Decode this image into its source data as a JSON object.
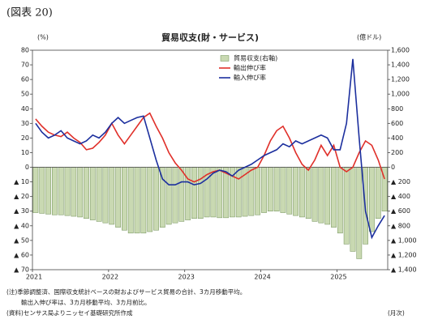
{
  "figure_label": "(図表 20)",
  "chart_data": {
    "type": "bar_line",
    "title": "貿易収支(財・サービス)",
    "y_label": "(%)",
    "y2_label": "(億ドル)",
    "x_unit": "(月次)",
    "notes": [
      "(注)季節調整済、国際収支統計ベースの財およびサービス貿易の合計、3カ月移動平均。",
      "輸出入伸び率は、3カ月移動平均、3カ月前比。",
      "(資料)センサス局よりニッセイ基礎研究所作成"
    ],
    "categories": [
      "2021",
      null,
      null,
      null,
      null,
      null,
      null,
      null,
      null,
      null,
      null,
      null,
      "2022",
      null,
      null,
      null,
      null,
      null,
      null,
      null,
      null,
      null,
      null,
      null,
      "2023",
      null,
      null,
      null,
      null,
      null,
      null,
      null,
      null,
      null,
      null,
      null,
      "2024",
      null,
      null,
      null,
      null,
      null,
      null,
      null,
      null,
      null,
      null,
      null,
      "2025",
      null,
      null,
      null,
      null,
      null,
      null,
      null
    ],
    "ylim": [
      -70,
      80
    ],
    "yticks": [
      80,
      70,
      60,
      50,
      40,
      30,
      20,
      10,
      0,
      {
        "value": -10,
        "label": "▲ 10"
      },
      {
        "value": -20,
        "label": "▲ 20"
      },
      {
        "value": -30,
        "label": "▲ 30"
      },
      {
        "value": -40,
        "label": "▲ 40"
      },
      {
        "value": -50,
        "label": "▲ 50"
      },
      {
        "value": -60,
        "label": "▲ 60"
      },
      {
        "value": -70,
        "label": "▲ 70"
      }
    ],
    "y2lim": [
      -1400,
      1600
    ],
    "y2ticks": [
      {
        "value": 1600,
        "label": "1,600"
      },
      {
        "value": 1400,
        "label": "1,400"
      },
      {
        "value": 1200,
        "label": "1,200"
      },
      {
        "value": 1000,
        "label": "1,000"
      },
      800,
      600,
      400,
      200,
      0,
      {
        "value": -200,
        "label": "▲ 200"
      },
      {
        "value": -400,
        "label": "▲ 400"
      },
      {
        "value": -600,
        "label": "▲ 600"
      },
      {
        "value": -800,
        "label": "▲ 800"
      },
      {
        "value": -1000,
        "label": "▲ 1,000"
      },
      {
        "value": -1200,
        "label": "▲ 1,200"
      },
      {
        "value": -1400,
        "label": "▲ 1,400"
      }
    ],
    "series": [
      {
        "name": "貿易収支(右軸)",
        "type": "bar",
        "axis": "y2",
        "color": "#c9d9b2",
        "values": [
          -620,
          -630,
          -640,
          -650,
          -650,
          -660,
          -670,
          -680,
          -700,
          -720,
          -740,
          -760,
          -780,
          -820,
          -860,
          -900,
          -900,
          -900,
          -880,
          -860,
          -820,
          -780,
          -760,
          -740,
          -720,
          -700,
          -700,
          -680,
          -680,
          -690,
          -690,
          -680,
          -680,
          -670,
          -660,
          -650,
          -620,
          -600,
          -600,
          -620,
          -640,
          -660,
          -680,
          -700,
          -740,
          -760,
          -780,
          -820,
          -900,
          -1050,
          -1150,
          -1250,
          -1050,
          -880,
          -700,
          -600
        ]
      },
      {
        "name": "輸出伸び率",
        "type": "line",
        "color": "#e0302a",
        "values": [
          33,
          28,
          24,
          22,
          21,
          24,
          20,
          17,
          12,
          13,
          17,
          22,
          30,
          22,
          16,
          22,
          28,
          34,
          37,
          28,
          20,
          10,
          3,
          -2,
          -8,
          -10,
          -8,
          -5,
          -3,
          -2,
          -4,
          -6,
          -8,
          -5,
          -2,
          0,
          8,
          18,
          25,
          28,
          20,
          10,
          2,
          -2,
          5,
          15,
          8,
          15,
          0,
          -3,
          0,
          10,
          18,
          15,
          5,
          -8
        ]
      },
      {
        "name": "輸入伸び率",
        "type": "line",
        "color": "#1c2f9e",
        "values": [
          30,
          24,
          20,
          22,
          25,
          20,
          18,
          16,
          18,
          22,
          20,
          24,
          30,
          34,
          30,
          32,
          34,
          35,
          20,
          5,
          -8,
          -12,
          -12,
          -10,
          -10,
          -12,
          -11,
          -8,
          -4,
          -2,
          -3,
          -6,
          -2,
          0,
          2,
          5,
          8,
          10,
          12,
          16,
          14,
          18,
          16,
          18,
          20,
          22,
          20,
          12,
          12,
          30,
          74,
          20,
          -30,
          -48,
          -40,
          -33
        ]
      }
    ]
  }
}
